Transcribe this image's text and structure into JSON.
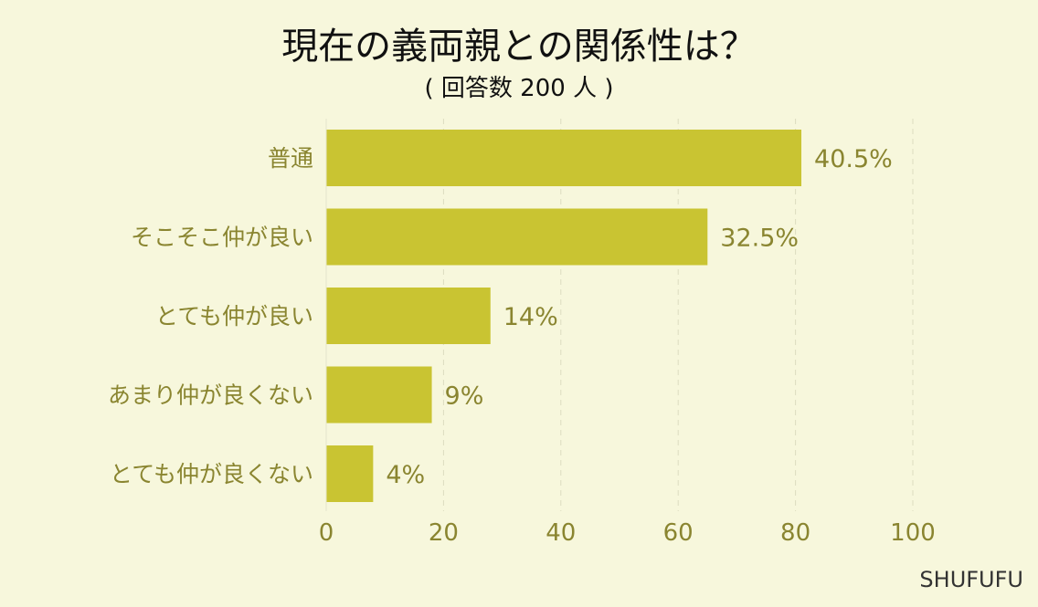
{
  "chart_data": {
    "type": "bar",
    "orientation": "horizontal",
    "title": "現在の義両親との関係性は？",
    "subtitle": "( 回答数 200 人 )",
    "categories": [
      "普通",
      "そこそこ仲が良い",
      "とても仲が良い",
      "あまり仲が良くない",
      "とても仲が良くない"
    ],
    "values": [
      81,
      65,
      28,
      18,
      8
    ],
    "data_labels": [
      "40.5%",
      "32.5%",
      "14%",
      "9%",
      "4%"
    ],
    "xlim": [
      0,
      100
    ],
    "xticks": [
      "0",
      "20",
      "40",
      "60",
      "80",
      "100"
    ],
    "grid": true,
    "colors": {
      "bar": "#c9c432",
      "background": "#f7f7dc",
      "text": "#8a8530"
    }
  },
  "brand": "SHUFUFU"
}
